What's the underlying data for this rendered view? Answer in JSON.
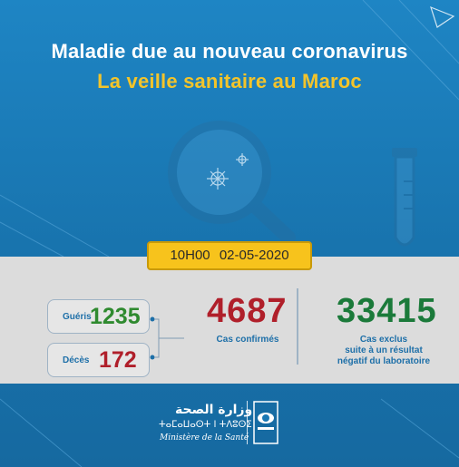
{
  "header": {
    "title_line1": "Maladie due au nouveau coronavirus",
    "title_line2": "La veille sanitaire au Maroc"
  },
  "bulletin": {
    "time": "10H00",
    "date": "02-05-2020"
  },
  "stats": {
    "recovered": {
      "label": "Guéris",
      "value": "1235"
    },
    "deaths": {
      "label": "Décès",
      "value": "172"
    },
    "confirmed": {
      "value": "4687",
      "label": "Cas confirmés"
    },
    "excluded": {
      "value": "33415",
      "label_line1": "Cas exclus",
      "label_line2": "suite à un résultat",
      "label_line3": "négatif du laboratoire"
    }
  },
  "footer": {
    "ministry_ar": "وزارة الصحة",
    "ministry_tz": "ⵜⴰⵎⴰⵡⴰⵙⵜ ⵏ ⵜⴷⵓⵙⵉ",
    "ministry_fr": "Ministère de la Santé"
  },
  "colors": {
    "background": "#1a78b4",
    "title_accent": "#f3c42a",
    "date_box": "#f7c31c",
    "confirmed": "#b01f2a",
    "recovered": "#2f8a2f",
    "excluded": "#1b7a3a",
    "label_blue": "#1d6fa8"
  },
  "icons": [
    "magnifier-icon",
    "virus-icon",
    "test-tube-icon",
    "ministry-emblem-icon"
  ]
}
